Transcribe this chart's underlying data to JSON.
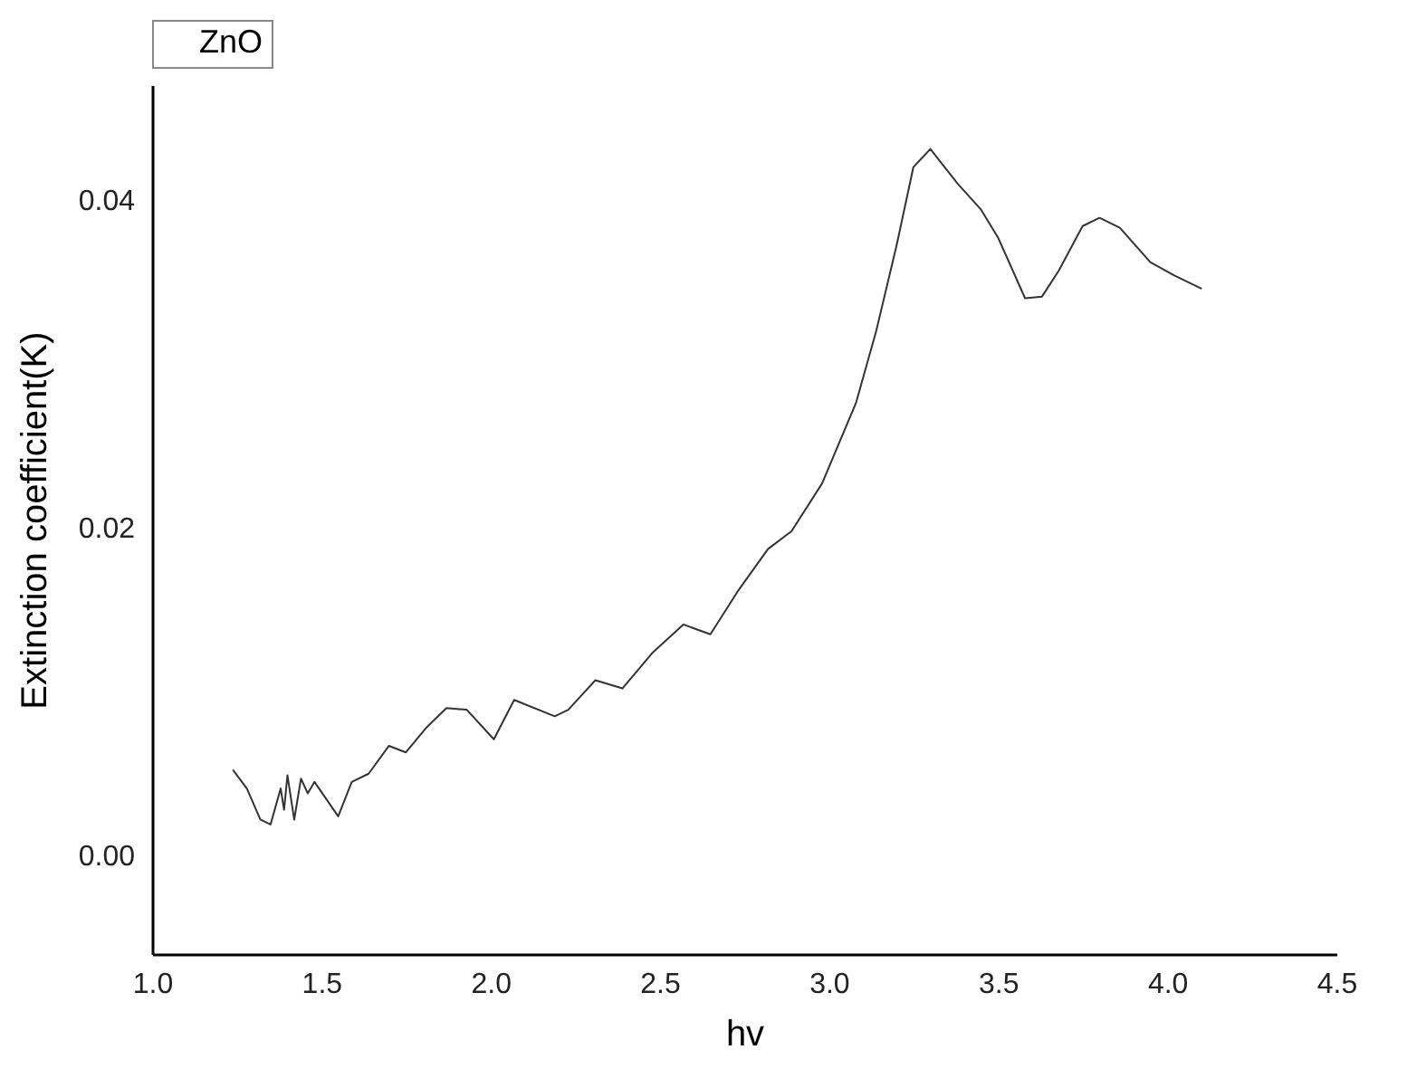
{
  "chart_data": {
    "type": "line",
    "xlabel": "hv",
    "ylabel": "Extinction coefficient(K)",
    "legend": "top",
    "grid": false,
    "xlim": [
      1.0,
      4.5
    ],
    "xticks": [
      {
        "value": 1,
        "label": "1.0"
      },
      {
        "value": 1.5,
        "label": "1.5"
      },
      {
        "value": 2,
        "label": "2.0"
      },
      {
        "value": 2.5,
        "label": "2.5"
      },
      {
        "value": 3,
        "label": "3.0"
      },
      {
        "value": 3.5,
        "label": "3.5"
      },
      {
        "value": 4,
        "label": "4.0"
      },
      {
        "value": 4.5,
        "label": "4.5"
      }
    ],
    "ylim": [
      -0.006,
      0.047
    ],
    "yticks": [
      {
        "value": 0,
        "label": "0.00"
      },
      {
        "value": 0.02,
        "label": "0.02"
      },
      {
        "value": 0.04,
        "label": "0.04"
      }
    ],
    "series": [
      {
        "name": "ZnO",
        "color": "#333333",
        "x": [
          1.24,
          1.28,
          1.32,
          1.35,
          1.38,
          1.39,
          1.4,
          1.42,
          1.44,
          1.46,
          1.48,
          1.55,
          1.59,
          1.64,
          1.7,
          1.75,
          1.81,
          1.87,
          1.93,
          2.01,
          2.07,
          2.19,
          2.23,
          2.31,
          2.39,
          2.48,
          2.57,
          2.65,
          2.73,
          2.82,
          2.89,
          2.98,
          3.08,
          3.14,
          3.2,
          3.25,
          3.3,
          3.38,
          3.45,
          3.5,
          3.58,
          3.63,
          3.68,
          3.75,
          3.8,
          3.86,
          3.95,
          4.02,
          4.1
        ],
        "values": [
          0.0052,
          0.0041,
          0.0022,
          0.0019,
          0.0041,
          0.0028,
          0.0049,
          0.0022,
          0.0047,
          0.0038,
          0.0045,
          0.0024,
          0.0045,
          0.005,
          0.0067,
          0.0063,
          0.0078,
          0.009,
          0.0089,
          0.0071,
          0.0095,
          0.0085,
          0.0089,
          0.0107,
          0.0102,
          0.0124,
          0.0141,
          0.0135,
          0.0161,
          0.0187,
          0.0198,
          0.0227,
          0.0276,
          0.032,
          0.0372,
          0.042,
          0.0431,
          0.041,
          0.0394,
          0.0377,
          0.034,
          0.0341,
          0.0357,
          0.0384,
          0.0389,
          0.0383,
          0.0362,
          0.0354,
          0.0346
        ]
      }
    ]
  }
}
